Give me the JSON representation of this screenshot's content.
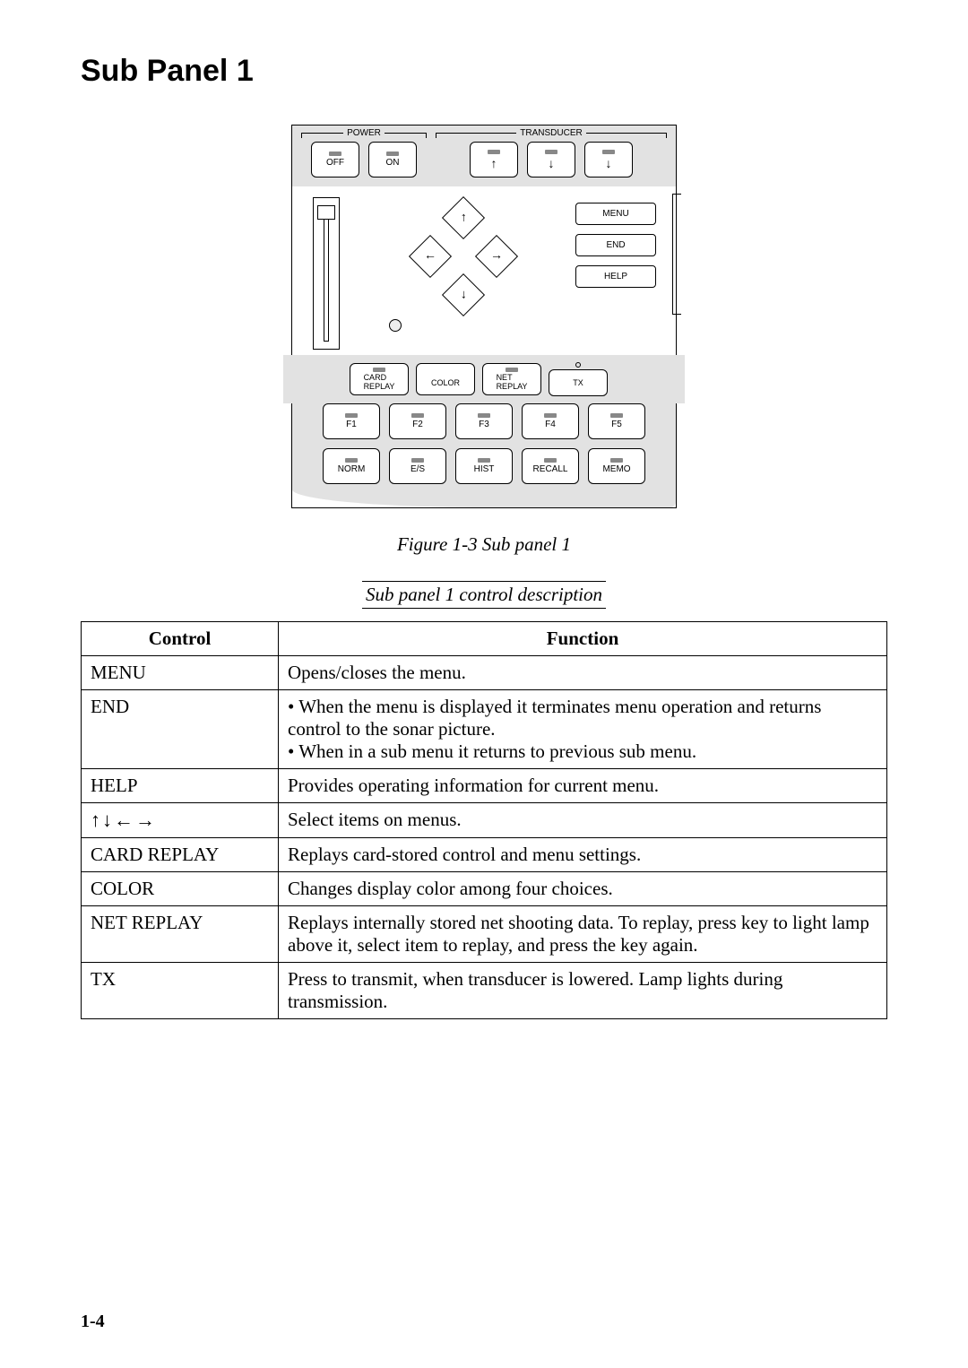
{
  "heading": "Sub Panel 1",
  "figure_caption": "Figure 1-3 Sub panel 1",
  "section_caption": "Sub panel 1 control description",
  "page_number": "1-4",
  "diagram": {
    "power_group_label": "POWER",
    "transducer_group_label": "TRANSDUCER",
    "power_off": "OFF",
    "power_on": "ON",
    "trans_up_icon": "↑",
    "trans_mid_icon": "↓",
    "trans_down_icon": "↓",
    "menu_label": "MENU",
    "end_label": "END",
    "help_label": "HELP",
    "arrow_up": "↑",
    "arrow_down": "↓",
    "arrow_left": "←",
    "arrow_right": "→",
    "card_replay_l1": "CARD",
    "card_replay_l2": "REPLAY",
    "color_label": "COLOR",
    "net_replay_l1": "NET",
    "net_replay_l2": "REPLAY",
    "tx_label": "TX",
    "f1": "F1",
    "f2": "F2",
    "f3": "F3",
    "f4": "F4",
    "f5": "F5",
    "norm": "NORM",
    "es": "E/S",
    "hist": "HIST",
    "recall": "RECALL",
    "memo": "MEMO"
  },
  "table": {
    "header_control": "Control",
    "header_function": "Function",
    "rows": [
      {
        "control": "MENU",
        "function": "Opens/closes the menu."
      },
      {
        "control": "END",
        "function": "• When the menu is displayed it terminates menu operation and returns control to the sonar picture.\n• When in a sub menu it returns to previous sub menu."
      },
      {
        "control": "HELP",
        "function": "Provides operating information for current menu."
      },
      {
        "control": "↑↓←→",
        "function": "Select items on menus.",
        "arrows": true
      },
      {
        "control": "CARD REPLAY",
        "function": "Replays card-stored control and menu settings."
      },
      {
        "control": "COLOR",
        "function": "Changes display color among four choices."
      },
      {
        "control": "NET REPLAY",
        "function": "Replays internally stored net shooting data. To replay, press key to light lamp above it, select item to replay, and press the key again."
      },
      {
        "control": "TX",
        "function": "Press to transmit, when transducer is lowered. Lamp lights during transmission."
      }
    ]
  }
}
